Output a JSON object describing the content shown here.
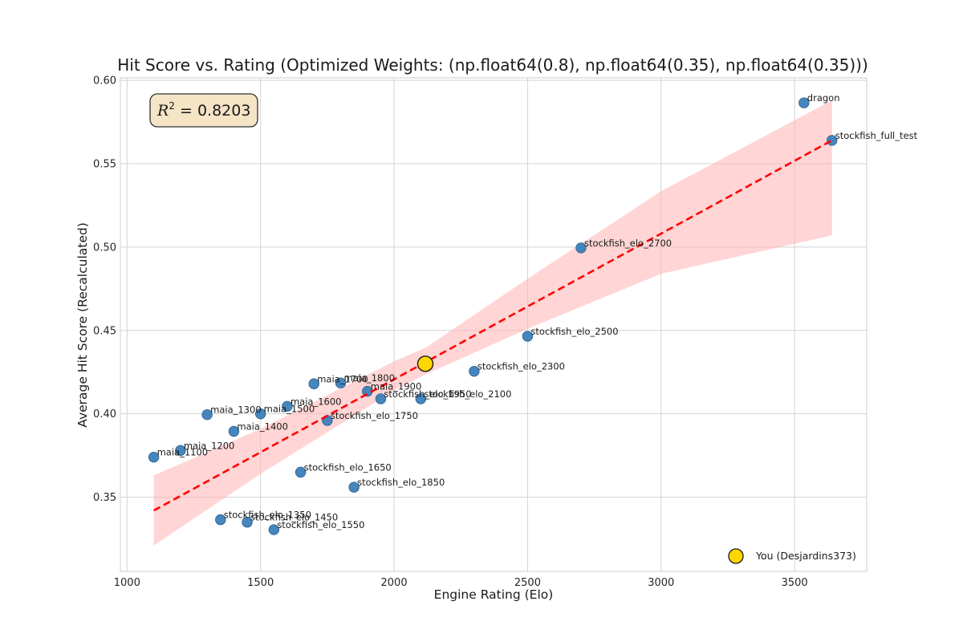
{
  "chart_data": {
    "type": "scatter",
    "title": "Hit Score vs. Rating (Optimized Weights: (np.float64(0.8), np.float64(0.35), np.float64(0.35)))",
    "xlabel": "Engine Rating (Elo)",
    "ylabel": "Average Hit Score (Recalculated)",
    "xlim": [
      975,
      3770
    ],
    "ylim": [
      0.3055,
      0.6015
    ],
    "xticks": [
      1000,
      1500,
      2000,
      2500,
      3000,
      3500
    ],
    "yticks": [
      0.35,
      0.4,
      0.45,
      0.5,
      0.55,
      0.6
    ],
    "ytick_labels": [
      "0.35",
      "0.40",
      "0.45",
      "0.50",
      "0.55",
      "0.60"
    ],
    "grid": true,
    "r_squared_label": "0.8203",
    "points": [
      {
        "label": "maia_1100",
        "x": 1100,
        "y": 0.374
      },
      {
        "label": "maia_1200",
        "x": 1200,
        "y": 0.378
      },
      {
        "label": "maia_1300",
        "x": 1300,
        "y": 0.3995
      },
      {
        "label": "maia_1400",
        "x": 1400,
        "y": 0.3895
      },
      {
        "label": "maia_1500",
        "x": 1500,
        "y": 0.4
      },
      {
        "label": "maia_1600",
        "x": 1600,
        "y": 0.4045
      },
      {
        "label": "maia_1700",
        "x": 1700,
        "y": 0.418
      },
      {
        "label": "maia_1800",
        "x": 1800,
        "y": 0.4185
      },
      {
        "label": "maia_1900",
        "x": 1900,
        "y": 0.4135
      },
      {
        "label": "stockfish_elo_1350",
        "x": 1350,
        "y": 0.3365
      },
      {
        "label": "stockfish_elo_1450",
        "x": 1450,
        "y": 0.335
      },
      {
        "label": "stockfish_elo_1550",
        "x": 1550,
        "y": 0.3305
      },
      {
        "label": "stockfish_elo_1650",
        "x": 1650,
        "y": 0.365
      },
      {
        "label": "stockfish_elo_1750",
        "x": 1750,
        "y": 0.396
      },
      {
        "label": "stockfish_elo_1850",
        "x": 1850,
        "y": 0.356
      },
      {
        "label": "stockfish_elo_1950",
        "x": 1950,
        "y": 0.409
      },
      {
        "label": "stockfish_elo_2100",
        "x": 2100,
        "y": 0.409
      },
      {
        "label": "stockfish_elo_2300",
        "x": 2300,
        "y": 0.4255
      },
      {
        "label": "stockfish_elo_2500",
        "x": 2500,
        "y": 0.4465
      },
      {
        "label": "stockfish_elo_2700",
        "x": 2700,
        "y": 0.4995
      },
      {
        "label": "dragon",
        "x": 3535,
        "y": 0.5865
      },
      {
        "label": "stockfish_full_test",
        "x": 3640,
        "y": 0.564
      }
    ],
    "you": {
      "label": "You (Desjardins373)",
      "x": 2117,
      "y": 0.43
    },
    "fit": {
      "x": [
        1100,
        3640
      ],
      "y": [
        0.342,
        0.564
      ]
    },
    "band": {
      "x": [
        1100,
        1500,
        2000,
        2117,
        2500,
        3000,
        3640
      ],
      "lower": [
        0.321,
        0.364,
        0.414,
        0.4235,
        0.451,
        0.484,
        0.507
      ],
      "upper": [
        0.363,
        0.391,
        0.4315,
        0.4395,
        0.481,
        0.5335,
        0.588
      ]
    },
    "legend": [
      {
        "name": "You (Desjardins373)"
      }
    ],
    "legend_placement": "lower-right",
    "colors": {
      "points": "#3b80b9",
      "points_edge": "#2a5f8f",
      "you": "#ffd700",
      "fit_line": "#ff0000",
      "band": "#ffb3b3",
      "grid": "#d3d3d3",
      "annotation_box": "#f5e4c6"
    }
  }
}
